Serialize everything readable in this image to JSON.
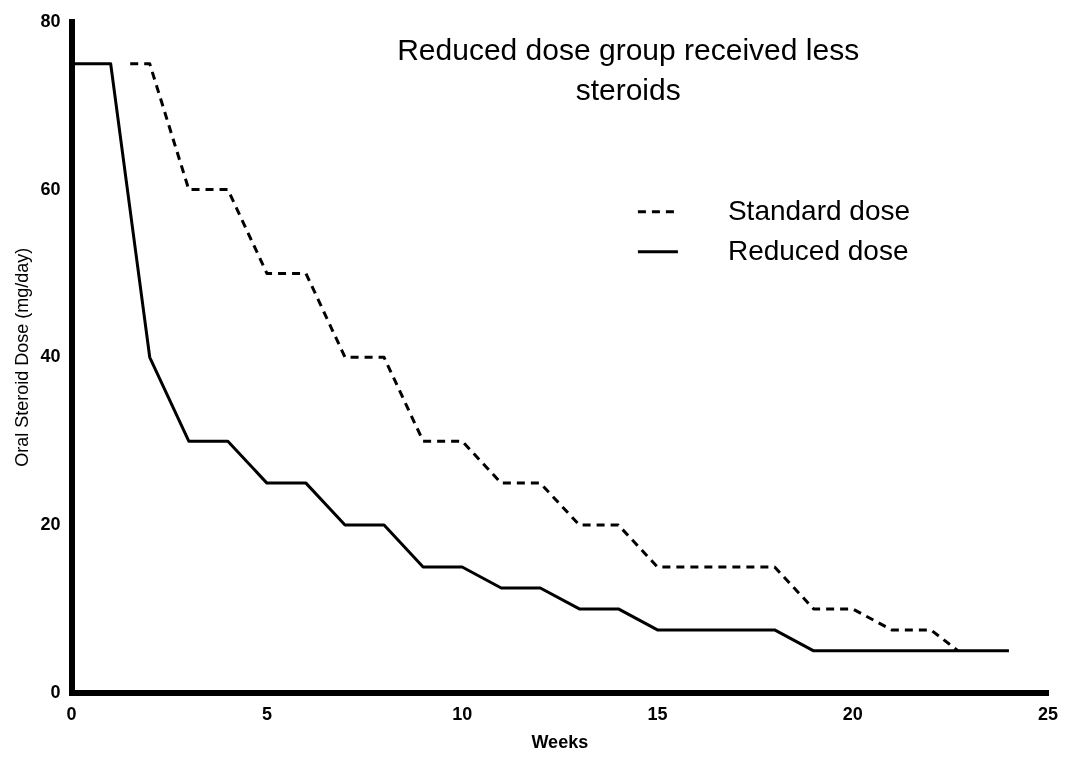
{
  "chart_data": {
    "type": "line",
    "xlabel": "Weeks",
    "ylabel": "Oral Steroid Dose (mg/day)",
    "annotations": [
      "Reduced dose group received less steroids"
    ],
    "xlim": [
      0,
      25
    ],
    "xticks": [
      0,
      5,
      10,
      15,
      20,
      25
    ],
    "ylim": [
      0,
      80
    ],
    "yticks": [
      0,
      20,
      40,
      60,
      80
    ],
    "grid": false,
    "legend": "top right",
    "marker": "none",
    "series": [
      {
        "name": "Standard dose",
        "color": "#000000",
        "line_style": "dashed",
        "x": [
          1.5,
          2,
          3,
          4,
          5,
          6,
          7,
          8,
          9,
          10,
          11,
          12,
          13,
          14,
          15,
          18,
          19,
          20,
          21,
          22,
          22.7
        ],
        "values": [
          75,
          75,
          60,
          60,
          50,
          50,
          40,
          40,
          30,
          30,
          25,
          25,
          20,
          20,
          15,
          15,
          10,
          10,
          7.5,
          7.5,
          5
        ]
      },
      {
        "name": "Reduced dose",
        "color": "#000000",
        "line_style": "solid",
        "x": [
          0,
          1,
          2,
          3,
          4,
          5,
          6,
          7,
          8,
          9,
          10,
          11,
          12,
          13,
          14,
          15,
          18,
          19,
          24
        ],
        "values": [
          75,
          75,
          40,
          30,
          30,
          25,
          25,
          20,
          20,
          15,
          15,
          12.5,
          12.5,
          10,
          10,
          7.5,
          7.5,
          5,
          5
        ]
      }
    ]
  }
}
